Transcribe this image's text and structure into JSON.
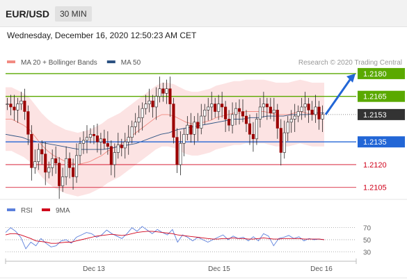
{
  "header": {
    "symbol": "EUR/USD",
    "timeframe": "30 MIN"
  },
  "date_text": "Wednesday, December 16, 2020 12:50:23 AM CET",
  "chart_data": {
    "type": "line",
    "main_legend": [
      {
        "name": "MA 20 + Bollinger Bands",
        "color": "#f28b82"
      },
      {
        "name": "MA 50",
        "color": "#2c5282"
      }
    ],
    "credit": "Research © 2020 Trading Central",
    "price_range": [
      1.2098,
      1.2185
    ],
    "levels": [
      {
        "value": 1.218,
        "label": "1.2180",
        "color": "#5aa900",
        "type": "resistance"
      },
      {
        "value": 1.2165,
        "label": "1.2165",
        "color": "#5aa900",
        "type": "resistance"
      },
      {
        "value": 1.2153,
        "label": "1.2153",
        "color": "#333333",
        "type": "current price"
      },
      {
        "value": 1.2135,
        "label": "1.2135",
        "color": "#2266d6",
        "type": "pivot"
      },
      {
        "value": 1.212,
        "label": "1.2120",
        "color": "#d0021b",
        "type": "support"
      },
      {
        "value": 1.2105,
        "label": "1.2105",
        "color": "#d0021b",
        "type": "support"
      }
    ],
    "price_series": [
      1.216,
      1.2158,
      1.2156,
      1.216,
      1.2162,
      1.2155,
      1.214,
      1.2118,
      1.2122,
      1.213,
      1.2127,
      1.2115,
      1.2118,
      1.2124,
      1.2121,
      1.2106,
      1.2112,
      1.2124,
      1.2118,
      1.2112,
      1.2126,
      1.2134,
      1.2136,
      1.2138,
      1.214,
      1.2139,
      1.2135,
      1.2137,
      1.2134,
      1.2132,
      1.212,
      1.2128,
      1.2133,
      1.2131,
      1.2135,
      1.2138,
      1.2145,
      1.2148,
      1.2151,
      1.2157,
      1.216,
      1.2162,
      1.2158,
      1.2165,
      1.217,
      1.2167,
      1.217,
      1.216,
      1.2138,
      1.212,
      1.2134,
      1.214,
      1.2146,
      1.214,
      1.2148,
      1.2144,
      1.2152,
      1.2156,
      1.2158,
      1.216,
      1.2155,
      1.216,
      1.2158,
      1.215,
      1.2146,
      1.2153,
      1.2157,
      1.2155,
      1.2152,
      1.2147,
      1.214,
      1.2137,
      1.215,
      1.2158,
      1.216,
      1.2158,
      1.2154,
      1.2156,
      1.2144,
      1.2128,
      1.2141,
      1.2148,
      1.215,
      1.2152,
      1.2155,
      1.2158,
      1.216,
      1.2156,
      1.2153,
      1.2158,
      1.215,
      1.2153
    ],
    "ma20": [
      1.215,
      1.215,
      1.2148,
      1.2146,
      1.2143,
      1.2138,
      1.2133,
      1.2129,
      1.2126,
      1.2124,
      1.2122,
      1.2121,
      1.212,
      1.2121,
      1.2122,
      1.2124,
      1.2126,
      1.2129,
      1.2131,
      1.2133,
      1.2136,
      1.2139,
      1.2142,
      1.2145,
      1.2148,
      1.2151,
      1.2153,
      1.2153,
      1.2152,
      1.215,
      1.2148,
      1.2147,
      1.2147,
      1.2148,
      1.2149,
      1.2151,
      1.2152,
      1.2153,
      1.2154,
      1.2154,
      1.2155,
      1.2155,
      1.2155,
      1.2155,
      1.2154,
      1.2153,
      1.2153,
      1.2153,
      1.2154,
      1.2155,
      1.2154,
      1.2153,
      1.2153,
      1.2153
    ],
    "ma50": [
      1.214,
      1.2139,
      1.2138,
      1.2136,
      1.2135,
      1.2134,
      1.2133,
      1.2132,
      1.2131,
      1.213,
      1.213,
      1.213,
      1.213,
      1.2131,
      1.2132,
      1.2133,
      1.2134,
      1.2136,
      1.2138,
      1.214,
      1.2141,
      1.2143,
      1.2144,
      1.2145,
      1.2146,
      1.2147,
      1.2148,
      1.2149,
      1.215,
      1.215,
      1.2151,
      1.2151,
      1.2152,
      1.2152,
      1.2152,
      1.2153,
      1.2153,
      1.2153,
      1.2154,
      1.2154
    ],
    "rsi_legend": [
      {
        "name": "RSI",
        "color": "#5b7fdc"
      },
      {
        "name": "9MA",
        "color": "#d0021b"
      }
    ],
    "rsi_range": [
      20,
      80
    ],
    "rsi_levels": [
      70,
      50,
      30
    ],
    "rsi_level_labels": [
      "70",
      "50",
      "30"
    ],
    "rsi": [
      62,
      70,
      64,
      54,
      35,
      46,
      40,
      52,
      44,
      38,
      40,
      48,
      50,
      44,
      54,
      58,
      62,
      60,
      54,
      58,
      66,
      60,
      56,
      52,
      60,
      70,
      64,
      72,
      66,
      60,
      67,
      62,
      58,
      67,
      46,
      58,
      54,
      48,
      54,
      50,
      46,
      50,
      54,
      58,
      50,
      56,
      52,
      54,
      48,
      55,
      48,
      60,
      56,
      40,
      52,
      54,
      57,
      52,
      55,
      48,
      52,
      50,
      51,
      50
    ],
    "rsi_ma": [
      58,
      60,
      60,
      58,
      55,
      52,
      48,
      47,
      46,
      44,
      44,
      45,
      46,
      46,
      48,
      50,
      52,
      54,
      56,
      57,
      58,
      59,
      58,
      57,
      58,
      60,
      62,
      63,
      64,
      64,
      63,
      62,
      61,
      60,
      58,
      57,
      56,
      55,
      54,
      53,
      52,
      51,
      51,
      52,
      52,
      53,
      52,
      52,
      51,
      51,
      52,
      53,
      52,
      51,
      51,
      52,
      52,
      52,
      52,
      51,
      51,
      51,
      51,
      50
    ],
    "x_tick_labels": [
      "Dec 13",
      "Dec 15",
      "Dec 16"
    ],
    "forecast": {
      "from": 1.2153,
      "to": 1.218,
      "color": "#2266d6"
    }
  }
}
